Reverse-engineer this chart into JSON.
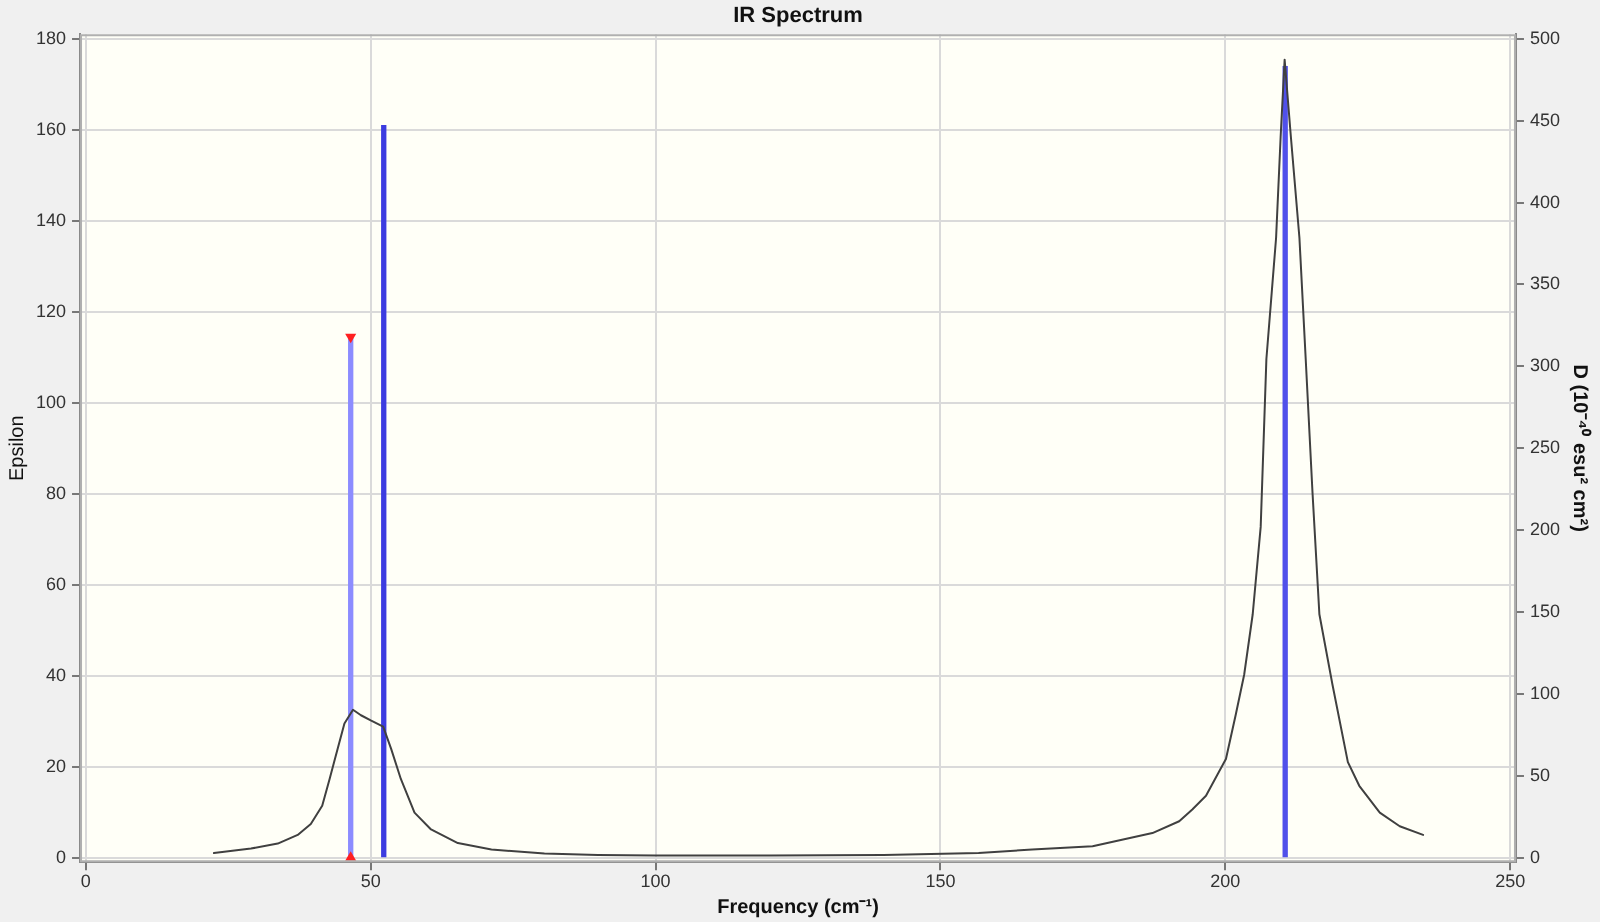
{
  "chart_data": {
    "type": "line",
    "title": "IR Spectrum",
    "xlabel": "Frequency (cm⁻¹)",
    "ylabel": "Epsilon",
    "y2label": "D (10⁻⁴⁰ esu² cm²)",
    "xlim": [
      -1,
      251
    ],
    "xticks": [
      0,
      50,
      100,
      150,
      200,
      250
    ],
    "ylim": [
      -1,
      181
    ],
    "yticks": [
      0,
      20,
      40,
      60,
      80,
      100,
      120,
      140,
      160,
      180
    ],
    "y2lim": [
      -2.8,
      502.8
    ],
    "y2ticks": [
      0,
      50,
      100,
      150,
      200,
      250,
      300,
      350,
      400,
      450,
      500
    ],
    "grid": true,
    "legend": false,
    "series": [
      {
        "color": "#404040",
        "x": [
          22.5,
          29.0,
          33.7,
          37.2,
          39.5,
          41.5,
          42.8,
          44.2,
          45.4,
          46.9,
          48.3,
          50.1,
          52.2,
          53.6,
          55.3,
          57.7,
          60.6,
          65.3,
          71.2,
          80.5,
          89.9,
          100,
          120,
          140,
          156.7,
          166.1,
          176.7,
          187.2,
          191.9,
          194.2,
          196.6,
          200.1,
          201.8,
          203.3,
          204.8,
          206.2,
          207.2,
          208.9,
          209.7,
          210.4,
          211.5,
          213.0,
          214.1,
          215.3,
          216.5,
          218.8,
          221.5,
          223.5,
          227.1,
          230.6,
          234.7
        ],
        "values": [
          1.0,
          2.0,
          3.1,
          5.0,
          7.4,
          11.4,
          17.3,
          23.9,
          29.5,
          32.5,
          31.3,
          30.1,
          28.8,
          23.9,
          17.3,
          9.9,
          6.2,
          3.2,
          1.8,
          0.9,
          0.6,
          0.5,
          0.5,
          0.6,
          1.0,
          1.8,
          2.5,
          5.4,
          8.0,
          10.6,
          13.6,
          21.7,
          31.3,
          40.2,
          53.5,
          72.7,
          109.6,
          136.2,
          158.4,
          175.4,
          158.4,
          136.2,
          109.6,
          80.1,
          53.5,
          38.0,
          21.0,
          15.8,
          9.9,
          6.9,
          5.0
        ]
      },
      {
        "type": "bar",
        "axis": "y2",
        "x": [
          46.5,
          52.3,
          210.5
        ],
        "values": [
          318,
          447,
          483
        ],
        "colors": [
          "#8c8cff",
          "#3c3ce0",
          "#5050ea"
        ]
      },
      {
        "type": "scatter",
        "axis": "y2",
        "x": [
          46.5,
          46.5
        ],
        "values": [
          318,
          0
        ],
        "color": "#ff2020",
        "marker": "triangle"
      }
    ]
  }
}
